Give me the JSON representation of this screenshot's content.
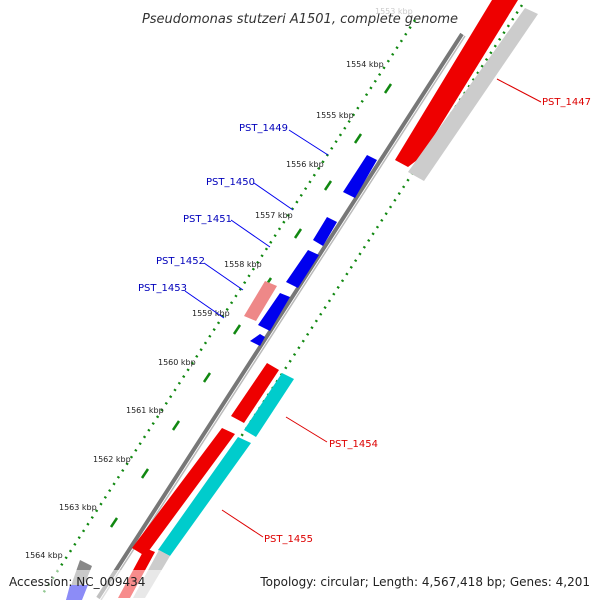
{
  "title": "Pseudomonas stutzeri A1501, complete genome",
  "footer": {
    "accession": "Accession: NC_009434",
    "topology": "Topology: circular; Length: 4,567,418 bp; Genes: 4,201"
  },
  "ticks": [
    "1553 kbp",
    "1554 kbp",
    "1555 kbp",
    "1556 kbp",
    "1557 kbp",
    "1558 kbp",
    "1559 kbp",
    "1560 kbp",
    "1561 kbp",
    "1562 kbp",
    "1563 kbp",
    "1564 kbp"
  ],
  "genes": {
    "forward": [
      "PST_1449",
      "PST_1450",
      "PST_1451",
      "PST_1452",
      "PST_1453"
    ],
    "reverse": [
      "PST_1447",
      "PST_1454",
      "PST_1455"
    ]
  },
  "colors": {
    "forward_cds": "#0000ee",
    "reverse_cds": "#ee0000",
    "rna": "#00cccc",
    "pseudo": "#ee8888",
    "backbone": "#777777",
    "tick": "#118811",
    "forward_label": "#0000bb",
    "reverse_label": "#dd0000"
  }
}
